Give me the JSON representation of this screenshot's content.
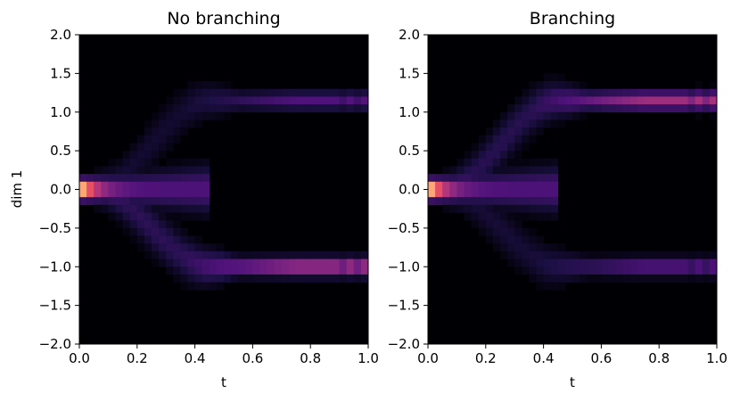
{
  "figure": {
    "ylabel": "dim 1"
  },
  "colormap": [
    "#000004",
    "#1c1044",
    "#4f127b",
    "#812581",
    "#b5367a",
    "#e55064",
    "#fb8761",
    "#fec287",
    "#fcfdbf"
  ],
  "chart_data": [
    {
      "type": "heatmap",
      "title": "No branching",
      "xlabel": "t",
      "ylabel": "dim 1",
      "xlim": [
        0.0,
        1.0
      ],
      "ylim": [
        -2.0,
        2.0
      ],
      "xticks": [
        "0.0",
        "0.2",
        "0.4",
        "0.6",
        "0.8",
        "1.0"
      ],
      "yticks": [
        "−2.0",
        "−1.5",
        "−1.0",
        "−0.5",
        "0.0",
        "0.5",
        "1.0",
        "1.5",
        "2.0"
      ],
      "grid": false,
      "bins": {
        "t": 40,
        "dim1": 40
      },
      "colormap": "magma",
      "density": {
        "start": {
          "t": 0.0,
          "center": 0.0,
          "spread": 0.08,
          "peak_intensity": 1.0
        },
        "branches": [
          {
            "center_t1": 1.15,
            "spread": 0.07,
            "intensity": 0.45
          },
          {
            "center_t1": -1.0,
            "spread": 0.07,
            "intensity": 0.85
          }
        ],
        "split_t": 0.4
      }
    },
    {
      "type": "heatmap",
      "title": "Branching",
      "xlabel": "t",
      "ylabel": "",
      "xlim": [
        0.0,
        1.0
      ],
      "ylim": [
        -2.0,
        2.0
      ],
      "xticks": [
        "0.0",
        "0.2",
        "0.4",
        "0.6",
        "0.8",
        "1.0"
      ],
      "yticks": [
        "−2.0",
        "−1.5",
        "−1.0",
        "−0.5",
        "0.0",
        "0.5",
        "1.0",
        "1.5",
        "2.0"
      ],
      "grid": false,
      "bins": {
        "t": 40,
        "dim1": 40
      },
      "colormap": "magma",
      "density": {
        "start": {
          "t": 0.0,
          "center": 0.0,
          "spread": 0.08,
          "peak_intensity": 1.0
        },
        "branches": [
          {
            "center_t1": 1.15,
            "spread": 0.07,
            "intensity": 0.8
          },
          {
            "center_t1": -1.0,
            "spread": 0.07,
            "intensity": 0.5
          }
        ],
        "split_t": 0.4
      }
    }
  ]
}
